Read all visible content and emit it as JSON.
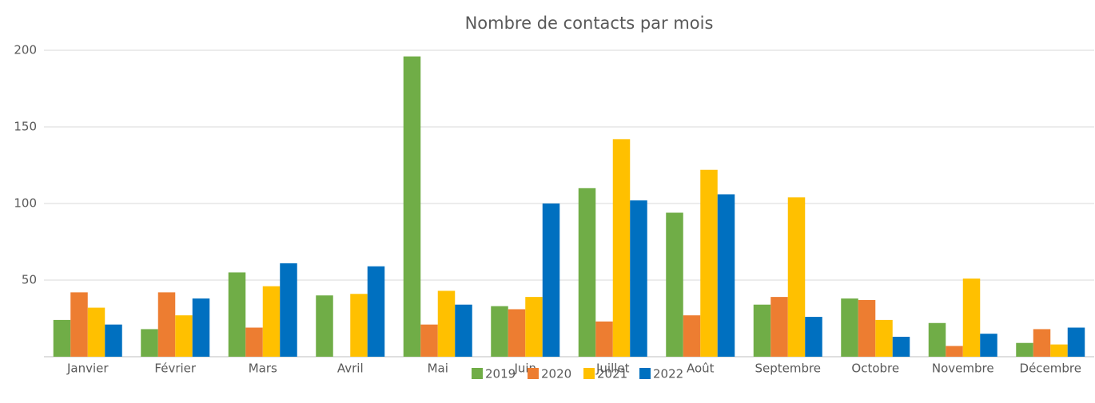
{
  "chart_data": {
    "type": "bar",
    "title": "Nombre de contacts par mois",
    "categories": [
      "Janvier",
      "Février",
      "Mars",
      "Avril",
      "Mai",
      "Juin",
      "Juillet",
      "Août",
      "Septembre",
      "Octobre",
      "Novembre",
      "Décembre"
    ],
    "series": [
      {
        "name": "2019",
        "color": "#70ad47",
        "values": [
          24,
          18,
          55,
          40,
          196,
          33,
          110,
          94,
          34,
          38,
          22,
          9
        ]
      },
      {
        "name": "2020",
        "color": "#ed7d31",
        "values": [
          42,
          42,
          19,
          0,
          21,
          31,
          23,
          27,
          39,
          37,
          7,
          18
        ]
      },
      {
        "name": "2021",
        "color": "#ffc000",
        "values": [
          32,
          27,
          46,
          41,
          43,
          39,
          142,
          122,
          104,
          24,
          51,
          8
        ]
      },
      {
        "name": "2022",
        "color": "#0070c0",
        "values": [
          21,
          38,
          61,
          59,
          34,
          100,
          102,
          106,
          26,
          13,
          15,
          19
        ]
      }
    ],
    "ylim": [
      0,
      200
    ],
    "yticks": [
      50,
      100,
      150,
      200
    ],
    "grid": true,
    "legend": "bottom"
  }
}
